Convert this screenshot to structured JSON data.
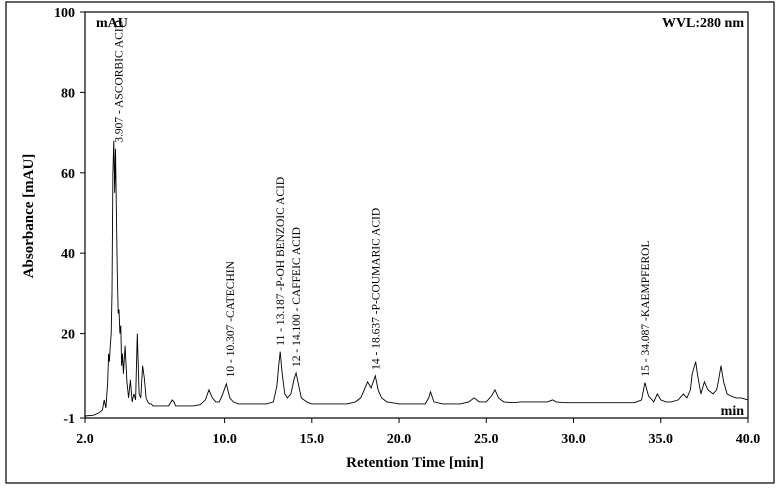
{
  "chart_data": {
    "type": "line",
    "title": "",
    "wavelength_label": "WVL:280 nm",
    "y_unit_label": "mAU",
    "x_unit_label": "min",
    "xlabel": "Retention Time [min]",
    "ylabel": "Absorbance [mAU]",
    "xlim": [
      2.0,
      40.0
    ],
    "ylim": [
      -1,
      100
    ],
    "x_ticks": [
      {
        "value": 2.0,
        "label": "2.0"
      },
      {
        "value": 10.0,
        "label": "10.0"
      },
      {
        "value": 15.0,
        "label": "15.0"
      },
      {
        "value": 20.0,
        "label": "20.0"
      },
      {
        "value": 25.0,
        "label": "25.0"
      },
      {
        "value": 30.0,
        "label": "30.0"
      },
      {
        "value": 35.0,
        "label": "35.0"
      },
      {
        "value": 40.0,
        "label": "40.0"
      }
    ],
    "y_ticks": [
      {
        "value": -1,
        "label": "-1"
      },
      {
        "value": 20,
        "label": "20"
      },
      {
        "value": 40,
        "label": "40"
      },
      {
        "value": 60,
        "label": "60"
      },
      {
        "value": 80,
        "label": "80"
      },
      {
        "value": 100,
        "label": "100"
      }
    ],
    "grid": false,
    "line_color": "#000000",
    "peak_labels": [
      {
        "x": 3.907,
        "y": 66,
        "text": "3.907 - ASCORBIC ACID"
      },
      {
        "x": 10.307,
        "y": 7.6,
        "text": "10 - 10.307 -CATECHIN"
      },
      {
        "x": 13.187,
        "y": 15.5,
        "text": "11 - 13.187 -P-OH BENZOIC ACID"
      },
      {
        "x": 14.1,
        "y": 10.2,
        "text": "12 - 14.100 - CAFFEIC ACID"
      },
      {
        "x": 18.637,
        "y": 9.5,
        "text": "14 - 18.637 -P-COUMARIC ACID"
      },
      {
        "x": 34.087,
        "y": 7.8,
        "text": "15 - 34.087 -KAEMPFEROL"
      }
    ],
    "series": [
      {
        "x": [
          2.0,
          2.5,
          2.8,
          3.0,
          3.1,
          3.2,
          3.3,
          3.35,
          3.4,
          3.45,
          3.5,
          3.55,
          3.6,
          3.65,
          3.7,
          3.75,
          3.8,
          3.85,
          3.9,
          3.95,
          4.0,
          4.05,
          4.1,
          4.15,
          4.2,
          4.3,
          4.4,
          4.5,
          4.6,
          4.7,
          4.8,
          4.9,
          5.0,
          5.1,
          5.2,
          5.3,
          5.4,
          5.5,
          5.6,
          5.7,
          5.8,
          5.9,
          6.0,
          6.2,
          6.5,
          6.8,
          7.0,
          7.1,
          7.2,
          7.4,
          7.8,
          8.2,
          8.6,
          8.9,
          9.1,
          9.3,
          9.5,
          9.7,
          9.9,
          10.1,
          10.3,
          10.5,
          10.8,
          11.2,
          11.6,
          12.0,
          12.4,
          12.8,
          13.0,
          13.1,
          13.19,
          13.3,
          13.45,
          13.6,
          13.8,
          14.0,
          14.1,
          14.2,
          14.4,
          14.7,
          15.0,
          15.5,
          16.0,
          16.5,
          17.0,
          17.5,
          17.8,
          18.0,
          18.2,
          18.4,
          18.64,
          18.8,
          19.0,
          19.3,
          19.6,
          20.0,
          20.5,
          21.0,
          21.5,
          21.7,
          21.8,
          22.0,
          22.5,
          23.0,
          23.5,
          24.0,
          24.3,
          24.6,
          25.0,
          25.3,
          25.5,
          25.7,
          26.0,
          26.5,
          27.0,
          27.5,
          28.0,
          28.5,
          28.8,
          29.0,
          29.5,
          30.0,
          30.5,
          31.0,
          31.5,
          32.0,
          32.5,
          33.0,
          33.5,
          33.9,
          34.09,
          34.3,
          34.6,
          34.8,
          35.0,
          35.3,
          35.6,
          36.0,
          36.3,
          36.5,
          36.7,
          36.8,
          37.0,
          37.1,
          37.3,
          37.5,
          37.7,
          38.0,
          38.2,
          38.3,
          38.45,
          38.6,
          38.8,
          39.0,
          39.3,
          39.6,
          40.0
        ],
        "y": [
          -0.5,
          -0.3,
          0.3,
          1.0,
          3.5,
          1.5,
          8.0,
          15.0,
          13.0,
          17.0,
          20.0,
          30.0,
          60.0,
          68.0,
          55.0,
          66.0,
          50.0,
          35.0,
          25.0,
          26.0,
          20.0,
          22.0,
          12.0,
          15.0,
          10.0,
          17.0,
          8.0,
          4.0,
          8.5,
          3.0,
          5.0,
          3.5,
          20.0,
          5.0,
          4.0,
          12.0,
          9.0,
          4.0,
          3.0,
          2.5,
          2.5,
          2.0,
          2.0,
          2.0,
          2.0,
          2.0,
          3.5,
          3.0,
          2.0,
          2.0,
          2.0,
          2.0,
          2.3,
          3.5,
          6.0,
          4.0,
          3.0,
          3.0,
          5.0,
          7.5,
          4.0,
          3.0,
          2.5,
          2.5,
          2.5,
          2.5,
          2.5,
          3.0,
          7.0,
          12.0,
          15.5,
          10.0,
          5.0,
          4.0,
          5.0,
          9.0,
          10.2,
          8.0,
          4.0,
          3.0,
          2.5,
          2.5,
          2.5,
          2.5,
          2.5,
          3.0,
          4.0,
          6.0,
          8.0,
          6.5,
          9.5,
          6.0,
          4.0,
          3.0,
          2.8,
          2.5,
          2.5,
          2.5,
          2.5,
          4.0,
          5.5,
          3.0,
          2.5,
          2.5,
          2.5,
          3.0,
          4.0,
          3.0,
          3.0,
          4.5,
          6.0,
          4.0,
          3.0,
          2.8,
          3.0,
          3.0,
          3.0,
          3.0,
          3.5,
          3.0,
          2.8,
          2.8,
          2.8,
          2.8,
          2.8,
          2.8,
          2.8,
          2.8,
          2.8,
          3.5,
          7.8,
          4.5,
          3.0,
          5.0,
          3.5,
          3.0,
          3.0,
          3.5,
          5.0,
          4.0,
          6.0,
          10.0,
          13.0,
          10.0,
          5.0,
          8.0,
          6.0,
          5.0,
          6.0,
          8.0,
          12.0,
          8.0,
          5.0,
          4.5,
          4.0,
          4.0,
          3.5
        ]
      }
    ]
  }
}
